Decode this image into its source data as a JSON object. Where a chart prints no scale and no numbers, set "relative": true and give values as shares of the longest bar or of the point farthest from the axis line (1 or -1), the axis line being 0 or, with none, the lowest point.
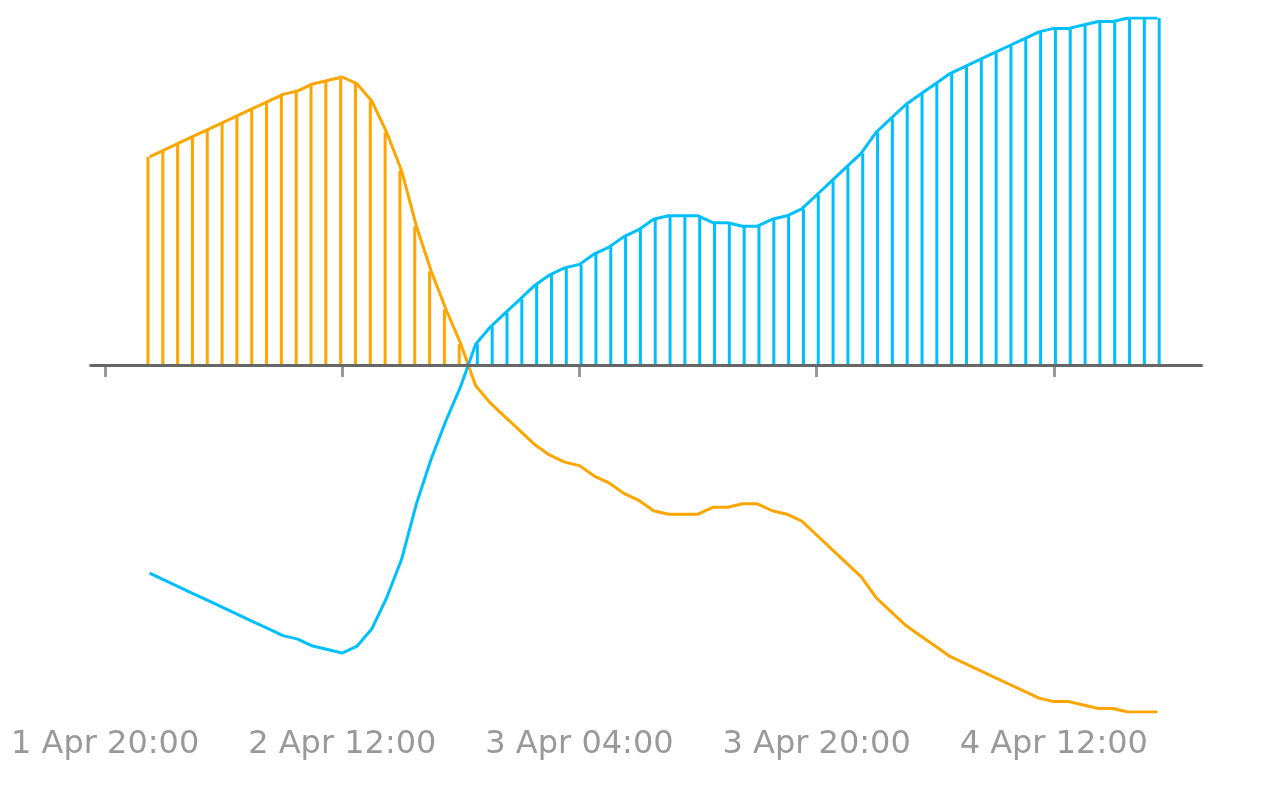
{
  "chart_data": {
    "type": "line",
    "relative": true,
    "x": [
      "--04-01T23:00",
      "--04-02T00:00",
      "--04-02T01:00",
      "--04-02T02:00",
      "--04-02T03:00",
      "--04-02T04:00",
      "--04-02T05:00",
      "--04-02T06:00",
      "--04-02T07:00",
      "--04-02T08:00",
      "--04-02T09:00",
      "--04-02T10:00",
      "--04-02T11:00",
      "--04-02T12:00",
      "--04-02T13:00",
      "--04-02T14:00",
      "--04-02T15:00",
      "--04-02T16:00",
      "--04-02T17:00",
      "--04-02T18:00",
      "--04-02T19:00",
      "--04-02T20:00",
      "--04-02T21:00",
      "--04-02T22:00",
      "--04-02T23:00",
      "--04-03T00:00",
      "--04-03T01:00",
      "--04-03T02:00",
      "--04-03T03:00",
      "--04-03T04:00",
      "--04-03T05:00",
      "--04-03T06:00",
      "--04-03T07:00",
      "--04-03T08:00",
      "--04-03T09:00",
      "--04-03T10:00",
      "--04-03T11:00",
      "--04-03T12:00",
      "--04-03T13:00",
      "--04-03T14:00",
      "--04-03T15:00",
      "--04-03T16:00",
      "--04-03T17:00",
      "--04-03T18:00",
      "--04-03T19:00",
      "--04-03T20:00",
      "--04-03T21:00",
      "--04-03T22:00",
      "--04-03T23:00",
      "--04-04T00:00",
      "--04-04T01:00",
      "--04-04T02:00",
      "--04-04T03:00",
      "--04-04T04:00",
      "--04-04T05:00",
      "--04-04T06:00",
      "--04-04T07:00",
      "--04-04T08:00",
      "--04-04T09:00",
      "--04-04T10:00",
      "--04-04T11:00",
      "--04-04T12:00",
      "--04-04T13:00",
      "--04-04T14:00",
      "--04-04T15:00",
      "--04-04T16:00",
      "--04-04T17:00",
      "--04-04T18:00",
      "--04-04T19:00"
    ],
    "xlim": [
      "--04-01T19:00",
      "--04-04T22:00"
    ],
    "xticks": [
      {
        "value": "--04-01T20:00",
        "label": "1 Apr 20:00"
      },
      {
        "value": "--04-02T12:00",
        "label": "2 Apr 12:00"
      },
      {
        "value": "--04-03T04:00",
        "label": "3 Apr 04:00"
      },
      {
        "value": "--04-03T20:00",
        "label": "3 Apr 20:00"
      },
      {
        "value": "--04-04T12:00",
        "label": "4 Apr 12:00"
      }
    ],
    "tick_labels": "x",
    "grid": false,
    "marker": "none",
    "line_style": "solid",
    "ref_lines": [
      {
        "axis": "y",
        "value": 0,
        "color": "#666666"
      }
    ],
    "series": [
      {
        "color": "#ffa500",
        "values": [
          0.6,
          0.62,
          0.64,
          0.66,
          0.68,
          0.7,
          0.72,
          0.74,
          0.76,
          0.78,
          0.79,
          0.81,
          0.82,
          0.83,
          0.81,
          0.76,
          0.67,
          0.56,
          0.4,
          0.27,
          0.16,
          0.06,
          -0.06,
          -0.11,
          -0.15,
          -0.19,
          -0.23,
          -0.26,
          -0.28,
          -0.29,
          -0.32,
          -0.34,
          -0.37,
          -0.39,
          -0.42,
          -0.43,
          -0.43,
          -0.43,
          -0.41,
          -0.41,
          -0.4,
          -0.4,
          -0.42,
          -0.43,
          -0.45,
          -0.49,
          -0.53,
          -0.57,
          -0.61,
          -0.67,
          -0.71,
          -0.75,
          -0.78,
          -0.81,
          -0.84,
          -0.86,
          -0.88,
          -0.9,
          -0.92,
          -0.94,
          -0.96,
          -0.97,
          -0.97,
          -0.98,
          -0.99,
          -0.99,
          -1.0,
          -1.0,
          -1.0
        ]
      },
      {
        "color": "#00bfff",
        "values": [
          -0.6,
          -0.62,
          -0.64,
          -0.66,
          -0.68,
          -0.7,
          -0.72,
          -0.74,
          -0.76,
          -0.78,
          -0.79,
          -0.81,
          -0.82,
          -0.83,
          -0.81,
          -0.76,
          -0.67,
          -0.56,
          -0.4,
          -0.27,
          -0.16,
          -0.06,
          0.06,
          0.11,
          0.15,
          0.19,
          0.23,
          0.26,
          0.28,
          0.29,
          0.32,
          0.34,
          0.37,
          0.39,
          0.42,
          0.43,
          0.43,
          0.43,
          0.41,
          0.41,
          0.4,
          0.4,
          0.42,
          0.43,
          0.45,
          0.49,
          0.53,
          0.57,
          0.61,
          0.67,
          0.71,
          0.75,
          0.78,
          0.81,
          0.84,
          0.86,
          0.88,
          0.9,
          0.92,
          0.94,
          0.96,
          0.97,
          0.97,
          0.98,
          0.99,
          0.99,
          1.0,
          1.0,
          1.0
        ]
      },
      {
        "type": "bar",
        "color": "#ffa500",
        "values": [
          0.6,
          0.62,
          0.64,
          0.66,
          0.68,
          0.7,
          0.72,
          0.74,
          0.76,
          0.78,
          0.79,
          0.81,
          0.82,
          0.83,
          0.81,
          0.76,
          0.67,
          0.56,
          0.4,
          0.27,
          0.16,
          0.06,
          null,
          null,
          null,
          null,
          null,
          null,
          null,
          null,
          null,
          null,
          null,
          null,
          null,
          null,
          null,
          null,
          null,
          null,
          null,
          null,
          null,
          null,
          null,
          null,
          null,
          null,
          null,
          null,
          null,
          null,
          null,
          null,
          null,
          null,
          null,
          null,
          null,
          null,
          null,
          null,
          null,
          null,
          null,
          null,
          null,
          null,
          null
        ]
      },
      {
        "type": "bar",
        "color": "#00bfff",
        "values": [
          null,
          null,
          null,
          null,
          null,
          null,
          null,
          null,
          null,
          null,
          null,
          null,
          null,
          null,
          null,
          null,
          null,
          null,
          null,
          null,
          null,
          null,
          0.06,
          0.11,
          0.15,
          0.19,
          0.23,
          0.26,
          0.28,
          0.29,
          0.32,
          0.34,
          0.37,
          0.39,
          0.42,
          0.43,
          0.43,
          0.43,
          0.41,
          0.41,
          0.4,
          0.4,
          0.42,
          0.43,
          0.45,
          0.49,
          0.53,
          0.57,
          0.61,
          0.67,
          0.71,
          0.75,
          0.78,
          0.81,
          0.84,
          0.86,
          0.88,
          0.9,
          0.92,
          0.94,
          0.96,
          0.97,
          0.97,
          0.98,
          0.99,
          0.99,
          1.0,
          1.0,
          1.0
        ]
      }
    ]
  }
}
